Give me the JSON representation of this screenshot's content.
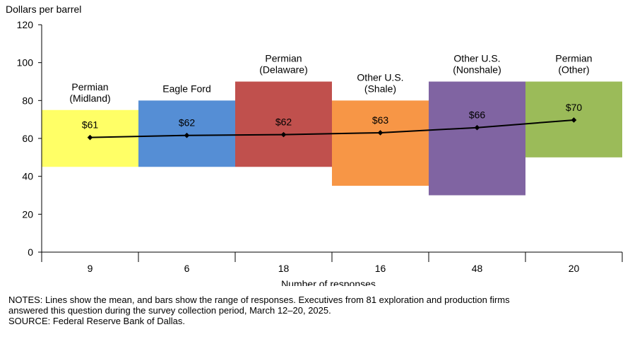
{
  "chart_data": {
    "type": "bar",
    "ylabel": "Dollars per barrel",
    "xlabel": "Number of responses",
    "ylim": [
      0,
      120
    ],
    "yticks": [
      0,
      20,
      40,
      60,
      80,
      100,
      120
    ],
    "groups": [
      {
        "name_lines": [
          "Permian",
          "(Midland)"
        ],
        "responses": "9",
        "low": 45,
        "high": 75,
        "mean": 60.5,
        "mean_label": "$61",
        "color": "#ffff66"
      },
      {
        "name_lines": [
          "Eagle Ford"
        ],
        "responses": "6",
        "low": 45,
        "high": 80,
        "mean": 61.6,
        "mean_label": "$62",
        "color": "#558ed5"
      },
      {
        "name_lines": [
          "Permian",
          "(Delaware)"
        ],
        "responses": "18",
        "low": 45,
        "high": 90,
        "mean": 62.0,
        "mean_label": "$62",
        "color": "#c0504d"
      },
      {
        "name_lines": [
          "Other U.S.",
          "(Shale)"
        ],
        "responses": "16",
        "low": 35,
        "high": 80,
        "mean": 63.0,
        "mean_label": "$63",
        "color": "#f79646"
      },
      {
        "name_lines": [
          "Other U.S.",
          "(Nonshale)"
        ],
        "responses": "48",
        "low": 30,
        "high": 90,
        "mean": 65.7,
        "mean_label": "$66",
        "color": "#8064a2"
      },
      {
        "name_lines": [
          "Permian",
          "(Other)"
        ],
        "responses": "20",
        "low": 50,
        "high": 90,
        "mean": 69.7,
        "mean_label": "$70",
        "color": "#9bbb59"
      }
    ],
    "line_color": "#000000"
  },
  "notes": {
    "line1": "NOTES: Lines show the mean, and bars show the range of responses. Executives from 81 exploration and production firms",
    "line2": "answered this question during the survey collection period, March 12–20, 2025.",
    "source": "SOURCE: Federal Reserve Bank of Dallas."
  }
}
